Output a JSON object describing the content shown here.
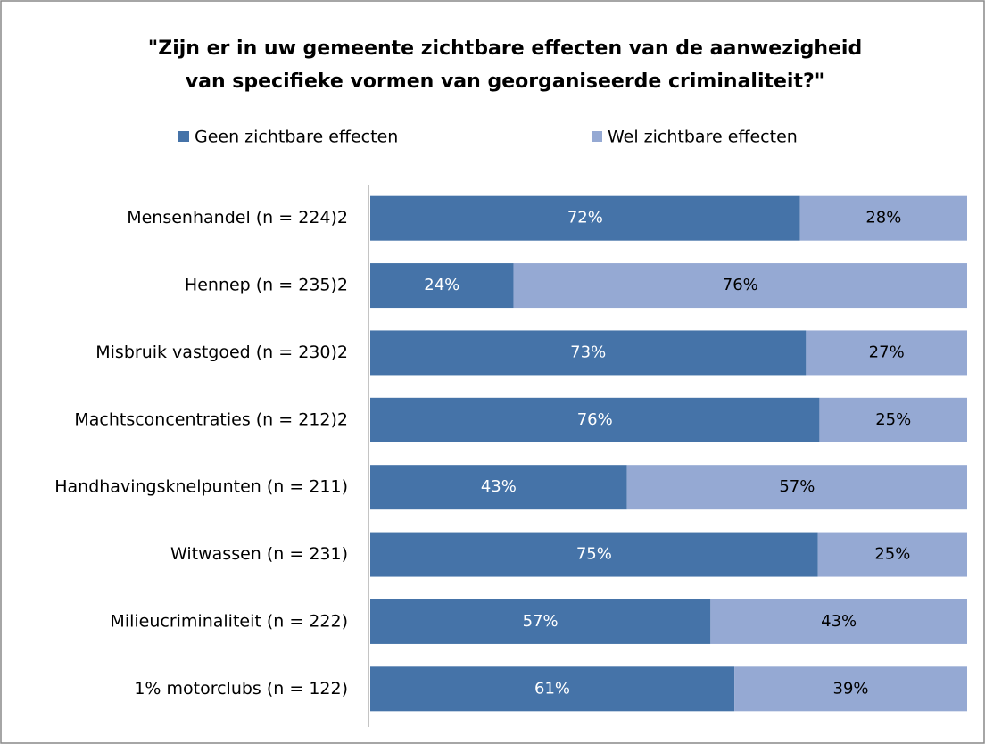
{
  "chart_data": {
    "type": "bar",
    "orientation": "horizontal",
    "stacking": "percent",
    "title": [
      "\"Zijn er in uw gemeente zichtbare effecten van de aanwezigheid",
      "van specifieke vormen van georganiseerde criminaliteit?\""
    ],
    "categories": [
      "Mensenhandel (n = 224)2",
      "Hennep (n = 235)2",
      "Misbruik vastgoed (n = 230)2",
      "Machtsconcentraties (n = 212)2",
      "Handhavingsknelpunten (n = 211)",
      "Witwassen (n = 231)",
      "Milieucriminaliteit (n = 222)",
      "1% motorclubs (n = 122)"
    ],
    "series": [
      {
        "name": "Geen zichtbare effecten",
        "color": "#4573a8",
        "values": [
          72,
          24,
          73,
          76,
          43,
          75,
          57,
          61
        ],
        "value_labels": [
          "72%",
          "24%",
          "73%",
          "76%",
          "43%",
          "75%",
          "57%",
          "61%"
        ]
      },
      {
        "name": "Wel zichtbare effecten",
        "color": "#95a9d3",
        "values": [
          28,
          76,
          27,
          25,
          57,
          25,
          43,
          39
        ],
        "value_labels": [
          "28%",
          "76%",
          "27%",
          "25%",
          "57%",
          "25%",
          "43%",
          "39%"
        ]
      }
    ],
    "legend": "top"
  }
}
